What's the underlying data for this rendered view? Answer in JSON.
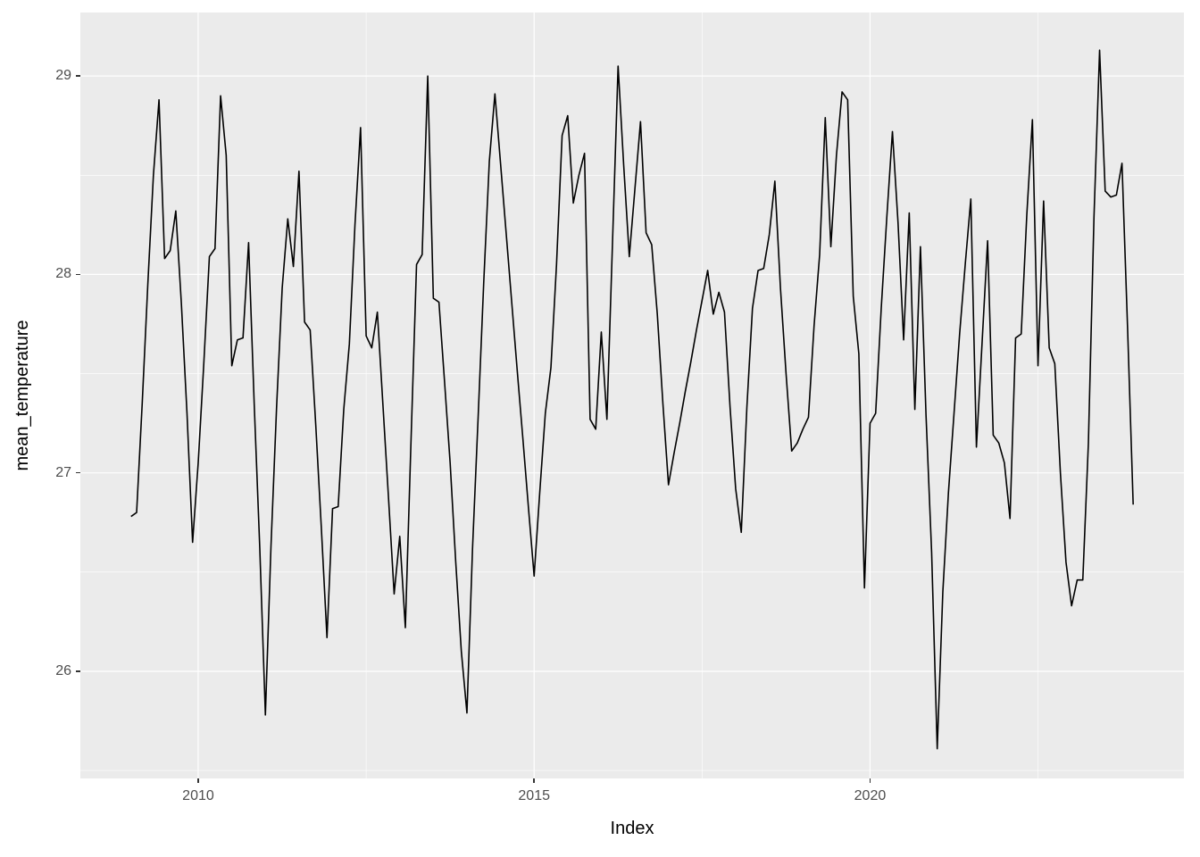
{
  "chart_data": {
    "type": "line",
    "title": "",
    "xlabel": "Index",
    "ylabel": "mean_temperature",
    "series_name": "mean_temperature",
    "x_unit": "decimal_year_monthly",
    "start_year": 2009,
    "end_year_month": "2023-12",
    "points_per_year": 12,
    "values": [
      26.78,
      26.8,
      27.35,
      27.95,
      28.5,
      28.88,
      28.08,
      28.12,
      28.32,
      27.85,
      27.3,
      26.65,
      27.05,
      27.55,
      28.09,
      28.13,
      28.9,
      28.6,
      27.54,
      27.67,
      27.68,
      28.16,
      27.35,
      26.62,
      25.78,
      26.63,
      27.33,
      27.93,
      28.28,
      28.04,
      28.52,
      27.76,
      27.72,
      27.24,
      26.72,
      26.17,
      26.82,
      26.83,
      27.32,
      27.65,
      28.25,
      28.74,
      27.69,
      27.63,
      27.81,
      27.34,
      26.87,
      26.39,
      26.68,
      26.22,
      27.15,
      28.05,
      28.1,
      29.0,
      27.88,
      27.86,
      27.46,
      27.05,
      26.55,
      26.1,
      25.79,
      26.62,
      27.28,
      27.96,
      28.57,
      28.91,
      28.56,
      28.21,
      27.86,
      27.51,
      27.17,
      26.82,
      26.48,
      26.9,
      27.3,
      27.53,
      28.05,
      28.7,
      28.8,
      28.36,
      28.5,
      28.61,
      27.27,
      27.22,
      27.71,
      27.27,
      28.16,
      29.05,
      28.55,
      28.09,
      28.43,
      28.77,
      28.21,
      28.15,
      27.8,
      27.35,
      26.94,
      27.1,
      27.25,
      27.41,
      27.56,
      27.72,
      27.87,
      28.02,
      27.8,
      27.91,
      27.81,
      27.33,
      26.92,
      26.7,
      27.33,
      27.83,
      28.02,
      28.03,
      28.2,
      28.47,
      27.93,
      27.5,
      27.11,
      27.15,
      27.22,
      27.28,
      27.74,
      28.1,
      28.79,
      28.14,
      28.6,
      28.92,
      28.88,
      27.89,
      27.6,
      26.42,
      27.25,
      27.3,
      27.83,
      28.29,
      28.72,
      28.26,
      27.67,
      28.31,
      27.32,
      28.14,
      27.29,
      26.6,
      25.61,
      26.4,
      26.9,
      27.3,
      27.7,
      28.05,
      28.38,
      27.13,
      27.65,
      28.17,
      27.19,
      27.15,
      27.05,
      26.77,
      27.68,
      27.7,
      28.3,
      28.78,
      27.54,
      28.37,
      27.63,
      27.55,
      27.0,
      26.55,
      26.33,
      26.46,
      26.46,
      27.15,
      28.29,
      29.13,
      28.42,
      28.39,
      28.4,
      28.56,
      27.73,
      26.84
    ],
    "xlim": [
      2008.246,
      2024.672
    ],
    "ylim": [
      25.46,
      29.32
    ],
    "x_ticks": [
      2010,
      2015,
      2020
    ],
    "x_tick_labels": [
      "2010",
      "2015",
      "2020"
    ],
    "x_minor_ticks": [
      2012.5,
      2017.5,
      2022.5
    ],
    "y_ticks": [
      26,
      27,
      28,
      29
    ],
    "y_tick_labels": [
      "26",
      "27",
      "28",
      "29"
    ],
    "y_minor_ticks": [
      25.5,
      26.5,
      27.5,
      28.5
    ],
    "grid": "on",
    "legend": "none",
    "colors": {
      "figure_bg": "#FFFFFF",
      "panel_bg": "#EBEBEB",
      "grid_major": "#FFFFFF",
      "grid_minor": "#FFFFFF",
      "line": "#000000",
      "tick_mark": "#333333",
      "tick_label": "#4D4D4D",
      "axis_title": "#000000"
    }
  }
}
